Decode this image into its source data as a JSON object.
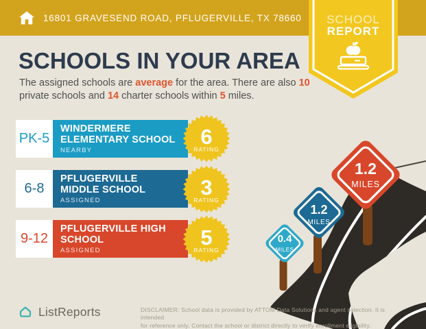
{
  "header": {
    "address": "16801 GRAVESEND ROAD, PFLUGERVILLE, TX 78660",
    "badge": {
      "line1": "SCHOOL",
      "line2": "REPORT"
    }
  },
  "title": "SCHOOLS IN YOUR AREA",
  "subtitle": {
    "line1": [
      {
        "t": "The assigned schools are "
      },
      {
        "t": "average",
        "accent": true
      },
      {
        "t": " for the area. There are also "
      },
      {
        "t": "10",
        "accent": true
      }
    ],
    "line2": [
      {
        "t": "private schools and "
      },
      {
        "t": "14",
        "accent": true
      },
      {
        "t": " charter schools within "
      },
      {
        "t": "5",
        "accent": true
      },
      {
        "t": " miles."
      }
    ]
  },
  "schools": [
    {
      "grades": "PK-5",
      "name": "WINDERMERE ELEMENTARY SCHOOL",
      "status": "NEARBY",
      "rating": "6",
      "rating_label": "RATING",
      "color": "#1b9cc4"
    },
    {
      "grades": "6-8",
      "name": "PFLUGERVILLE MIDDLE SCHOOL",
      "status": "ASSIGNED",
      "rating": "3",
      "rating_label": "RATING",
      "color": "#1d6a94"
    },
    {
      "grades": "9-12",
      "name": "PFLUGERVILLE HIGH SCHOOL",
      "status": "ASSIGNED",
      "rating": "5",
      "rating_label": "RATING",
      "color": "#d8472b"
    }
  ],
  "signs": [
    {
      "value": "0.4",
      "unit": "MILES",
      "color": "#2fa9c9"
    },
    {
      "value": "1.2",
      "unit": "MILES",
      "color": "#1d6a94"
    },
    {
      "value": "1.2",
      "unit": "MILES",
      "color": "#d8472b"
    }
  ],
  "footer": {
    "brand": "ListReports",
    "disclaimer_line1": "DISCLAIMER: School data is provided by ATTOM Data Solutions and agent selection. It is intended",
    "disclaimer_line2": "for reference only. Contact the school or district directly to verify enrollment eligibility."
  },
  "colors": {
    "header_gold": "#d2a31c",
    "badge_yellow": "#f2c71f",
    "background": "#e9e4d9",
    "title_navy": "#2d3b4d",
    "accent_orange": "#e0542f",
    "rating_badge": "#efc41e",
    "road": "#2e2a25",
    "post_brown": "#7a4318",
    "brand_teal": "#3ab5ad"
  }
}
